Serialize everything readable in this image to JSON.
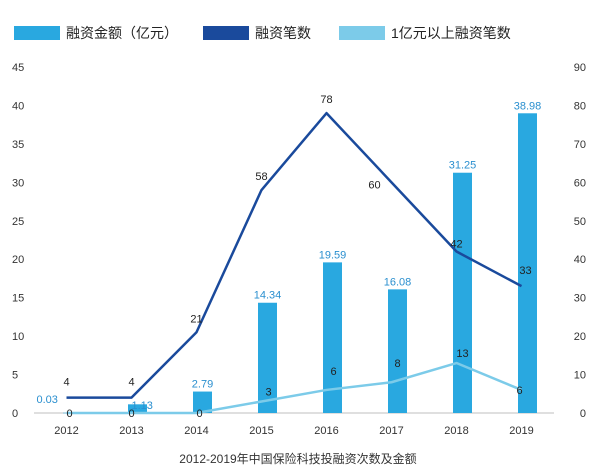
{
  "chart_data": {
    "type": "bar",
    "categories": [
      "2012",
      "2013",
      "2014",
      "2015",
      "2016",
      "2017",
      "2018",
      "2019"
    ],
    "series": [
      {
        "name": "融资金额（亿元）",
        "kind": "bar",
        "axis": "left",
        "color": "#29a8e0",
        "values": [
          0.03,
          1.13,
          2.79,
          14.34,
          19.59,
          16.08,
          31.25,
          38.98
        ],
        "labels": [
          "0.03",
          "1.13",
          "2.79",
          "14.34",
          "19.59",
          "16.08",
          "31.25",
          "38.98"
        ]
      },
      {
        "name": "融资笔数",
        "kind": "line",
        "axis": "right",
        "color": "#1a4a9c",
        "values": [
          4,
          4,
          21,
          58,
          78,
          60,
          42,
          33
        ],
        "labels": [
          "4",
          "4",
          "21",
          "58",
          "78",
          "60",
          "42",
          "33"
        ]
      },
      {
        "name": "1亿元以上融资笔数",
        "kind": "line",
        "axis": "right",
        "color": "#7ccbe9",
        "values": [
          0,
          0,
          0,
          3,
          6,
          8,
          13,
          6
        ],
        "labels": [
          "0",
          "0",
          "0",
          "3",
          "6",
          "8",
          "13",
          "6"
        ]
      }
    ],
    "yleft_lim": [
      0,
      45
    ],
    "yleft_ticks": [
      "0",
      "5",
      "10",
      "15",
      "20",
      "25",
      "30",
      "35",
      "40",
      "45"
    ],
    "yright_lim": [
      0,
      90
    ],
    "yright_ticks": [
      "0",
      "10",
      "20",
      "30",
      "40",
      "50",
      "60",
      "70",
      "80",
      "90"
    ],
    "legend": "top",
    "grid": false,
    "caption": "2012-2019年中国保险科技投融资次数及金额"
  }
}
